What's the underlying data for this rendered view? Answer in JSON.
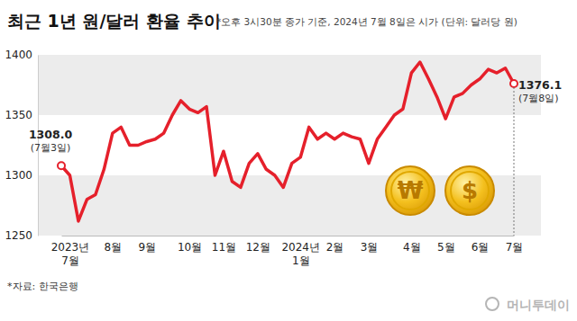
{
  "chart_data": {
    "type": "line",
    "title": "최근 1년 원/달러 환율 추이",
    "subtitle": "*오후 3시30분 종가 기준, 2024년 7월 8일은 시가 (단위: 달러당 원)",
    "source": "*자료: 한국은행",
    "logo": "머니투데이",
    "icons": [
      "₩",
      "$"
    ],
    "categories": [
      null,
      "2023년\n7월",
      null,
      null,
      null,
      null,
      "8월",
      null,
      null,
      null,
      "9월",
      null,
      null,
      null,
      null,
      "10월",
      null,
      null,
      null,
      "11월",
      null,
      null,
      null,
      "12월",
      null,
      null,
      null,
      null,
      "2024년\n1월",
      null,
      null,
      null,
      "2월",
      null,
      null,
      null,
      "3월",
      null,
      null,
      null,
      null,
      "4월",
      null,
      null,
      null,
      "5월",
      null,
      null,
      null,
      "6월",
      null,
      null,
      null,
      "7월"
    ],
    "values": [
      1308.0,
      1300,
      1262,
      1280,
      1284,
      1305,
      1335,
      1340,
      1325,
      1325,
      1328,
      1330,
      1335,
      1350,
      1362,
      1355,
      1352,
      1357,
      1300,
      1320,
      1295,
      1290,
      1310,
      1318,
      1305,
      1300,
      1290,
      1310,
      1315,
      1340,
      1330,
      1335,
      1330,
      1335,
      1332,
      1330,
      1310,
      1330,
      1340,
      1350,
      1355,
      1385,
      1394,
      1380,
      1365,
      1347,
      1365,
      1368,
      1375,
      1380,
      1388,
      1385,
      1389,
      1376.1
    ],
    "value_labels": [
      "1308.0",
      null,
      null,
      null,
      null,
      null,
      null,
      null,
      null,
      null,
      null,
      null,
      null,
      null,
      null,
      null,
      null,
      null,
      null,
      null,
      null,
      null,
      null,
      null,
      null,
      null,
      null,
      null,
      null,
      null,
      null,
      null,
      null,
      null,
      null,
      null,
      null,
      null,
      null,
      null,
      null,
      null,
      null,
      null,
      null,
      null,
      null,
      null,
      null,
      null,
      null,
      null,
      null,
      "1376.1"
    ],
    "annotations": [
      {
        "index": 0,
        "text": "(7월3일)"
      },
      {
        "index": 53,
        "text": "(7월8일)"
      }
    ],
    "color": "#e5202b",
    "ylim": [
      1250,
      1400
    ],
    "yticks": [
      1250,
      1300,
      1350,
      1400
    ],
    "grid": true
  }
}
